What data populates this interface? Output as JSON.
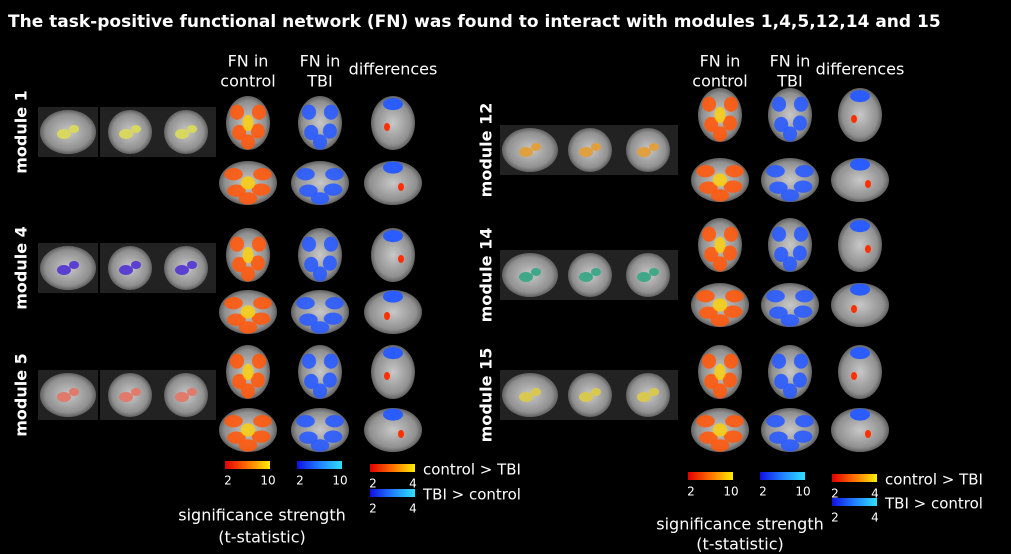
{
  "title": "The task-positive functional network (FN) was found to interact with modules 1,4,5,12,14 and 15",
  "panels": [
    {
      "column_headers": [
        [
          "FN in",
          "control"
        ],
        [
          "FN in",
          "TBI"
        ],
        [
          "differences"
        ]
      ],
      "modules": [
        {
          "label": "module 1",
          "color": "#d8d860"
        },
        {
          "label": "module 4",
          "color": "#5a3fd0"
        },
        {
          "label": "module 5",
          "color": "#e07a6a"
        }
      ],
      "colorbars": [
        {
          "ticks": [
            2,
            10
          ]
        },
        {
          "ticks": [
            2,
            10
          ]
        },
        {
          "ticks": [
            2,
            4
          ],
          "label": "control > TBI"
        },
        {
          "ticks": [
            2,
            4
          ],
          "label": "TBI > control"
        }
      ],
      "legend_title": [
        "significance strength",
        "(t-statistic)"
      ]
    },
    {
      "column_headers": [
        [
          "FN in",
          "control"
        ],
        [
          "FN in",
          "TBI"
        ],
        [
          "differences"
        ]
      ],
      "modules": [
        {
          "label": "module 12",
          "color": "#e0a040"
        },
        {
          "label": "module 14",
          "color": "#40a888"
        },
        {
          "label": "module 15",
          "color": "#d8c850"
        }
      ],
      "colorbars": [
        {
          "ticks": [
            2,
            10
          ]
        },
        {
          "ticks": [
            2,
            10
          ]
        },
        {
          "ticks": [
            2,
            4
          ],
          "label": "control > TBI"
        },
        {
          "ticks": [
            2,
            4
          ],
          "label": "TBI > control"
        }
      ],
      "legend_title": [
        "significance strength",
        "(t-statistic)"
      ]
    }
  ]
}
